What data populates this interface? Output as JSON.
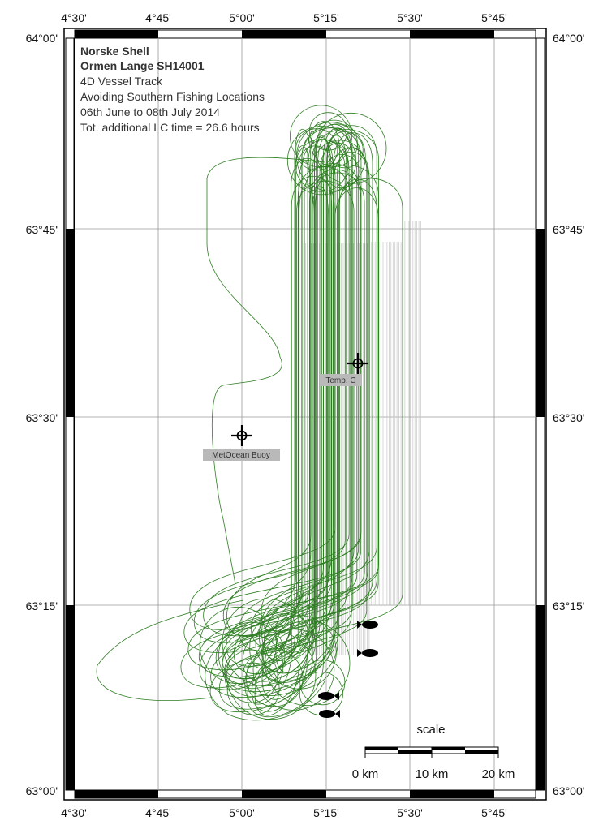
{
  "map": {
    "title_lines": [
      "Norske Shell",
      "Ormen Lange SH14001",
      "4D Vessel Track",
      "Avoiding Southern Fishing Locations",
      "06th June to 08th July 2014",
      "Tot. additional LC time = 26.6 hours"
    ],
    "lon_ticks": [
      "4°30'",
      "4°45'",
      "5°00'",
      "5°15'",
      "5°30'",
      "5°45'"
    ],
    "lat_ticks": [
      "64°00'",
      "63°45'",
      "63°30'",
      "63°15'",
      "63°00'"
    ],
    "markers": [
      {
        "name": "MetOcean Buoy",
        "lon": 5.0,
        "lat": 63.485
      },
      {
        "name": "Temp. C",
        "lon": 5.345,
        "lat": 63.571
      }
    ],
    "scale": {
      "label": "scale",
      "ticks": [
        "0 km",
        "10 km",
        "20 km"
      ]
    },
    "colors": {
      "track": "#2e7d22",
      "survey_lines": "#c8c8c8",
      "frame": "#000000",
      "grid": "#9a9a9a",
      "label_box": "#b9b9b9"
    }
  }
}
